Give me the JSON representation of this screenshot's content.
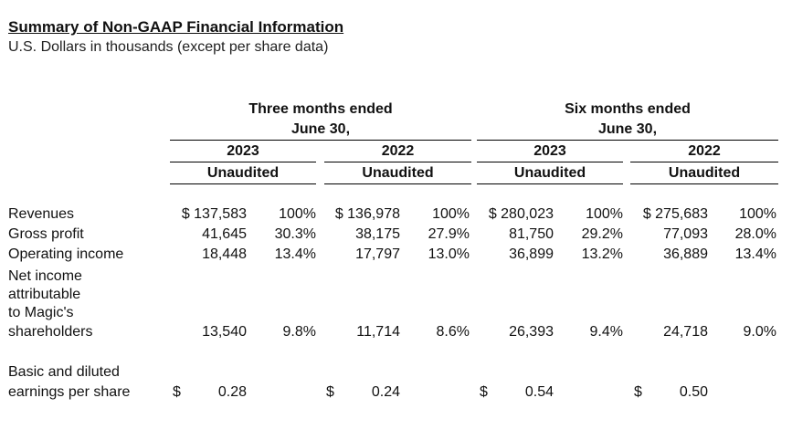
{
  "title": "Summary of Non-GAAP Financial Information",
  "subtitle": "U.S. Dollars in thousands (except per share data)",
  "periods": [
    {
      "line1": "Three months ended",
      "line2": "June 30,",
      "years": [
        {
          "year": "2023",
          "status": "Unaudited"
        },
        {
          "year": "2022",
          "status": "Unaudited"
        }
      ]
    },
    {
      "line1": "Six months ended",
      "line2": "June 30,",
      "years": [
        {
          "year": "2023",
          "status": "Unaudited"
        },
        {
          "year": "2022",
          "status": "Unaudited"
        }
      ]
    }
  ],
  "rows": [
    {
      "label": "Revenues",
      "cols": [
        {
          "value": "$ 137,583",
          "pct": "100%"
        },
        {
          "value": "$ 136,978",
          "pct": "100%"
        },
        {
          "value": "$ 280,023",
          "pct": "100%"
        },
        {
          "value": "$ 275,683",
          "pct": "100%"
        }
      ]
    },
    {
      "label": "Gross profit",
      "cols": [
        {
          "value": "41,645",
          "pct": "30.3%"
        },
        {
          "value": "38,175",
          "pct": "27.9%"
        },
        {
          "value": "81,750",
          "pct": "29.2%"
        },
        {
          "value": "77,093",
          "pct": "28.0%"
        }
      ]
    },
    {
      "label": "Operating income",
      "cols": [
        {
          "value": "18,448",
          "pct": "13.4%"
        },
        {
          "value": "17,797",
          "pct": "13.0%"
        },
        {
          "value": "36,899",
          "pct": "13.2%"
        },
        {
          "value": "36,889",
          "pct": "13.4%"
        }
      ]
    },
    {
      "label_lines": [
        "Net income",
        "attributable",
        "to Magic's",
        "shareholders"
      ],
      "cols": [
        {
          "value": "13,540",
          "pct": "9.8%"
        },
        {
          "value": "11,714",
          "pct": "8.6%"
        },
        {
          "value": "26,393",
          "pct": "9.4%"
        },
        {
          "value": "24,718",
          "pct": "9.0%"
        }
      ]
    },
    {
      "label_lines": [
        "Basic and diluted",
        "earnings per share"
      ],
      "cols": [
        {
          "dollar": "$",
          "value": "0.28"
        },
        {
          "dollar": "$",
          "value": "0.24"
        },
        {
          "dollar": "$",
          "value": "0.54"
        },
        {
          "dollar": "$",
          "value": "0.50"
        }
      ]
    }
  ]
}
